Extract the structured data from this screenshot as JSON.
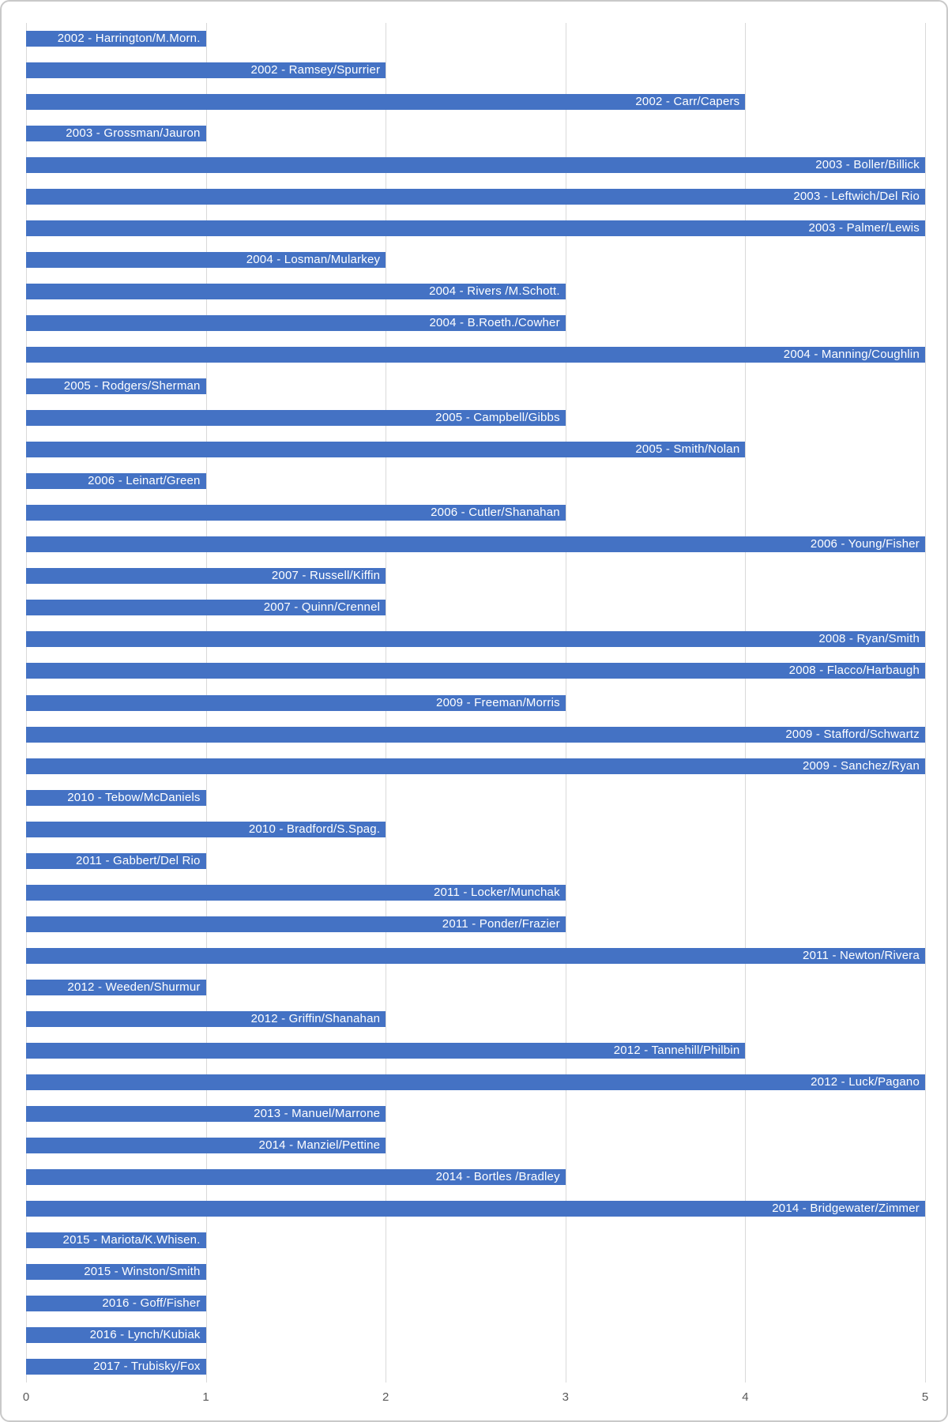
{
  "chart_data": {
    "type": "bar",
    "orientation": "horizontal",
    "title": "",
    "xlabel": "",
    "ylabel": "",
    "xlim": [
      0,
      5
    ],
    "x_ticks": [
      "0",
      "1",
      "2",
      "3",
      "4",
      "5"
    ],
    "grid": "vertical-only",
    "legend": "none",
    "label_position": "inside-end",
    "categories": [
      "2002 - Harrington/M.Morn.",
      "2002 - Ramsey/Spurrier",
      "2002 - Carr/Capers",
      "2003 - Grossman/Jauron",
      "2003 - Boller/Billick",
      "2003 - Leftwich/Del Rio",
      "2003 - Palmer/Lewis",
      "2004 - Losman/Mularkey",
      "2004 - Rivers /M.Schott.",
      "2004 - B.Roeth./Cowher",
      "2004 - Manning/Coughlin",
      "2005 - Rodgers/Sherman",
      "2005 - Campbell/Gibbs",
      "2005 - Smith/Nolan",
      "2006 - Leinart/Green",
      "2006 - Cutler/Shanahan",
      "2006 - Young/Fisher",
      "2007 - Russell/Kiffin",
      "2007 - Quinn/Crennel",
      "2008 - Ryan/Smith",
      "2008 - Flacco/Harbaugh",
      "2009 - Freeman/Morris",
      "2009 - Stafford/Schwartz",
      "2009 - Sanchez/Ryan",
      "2010 - Tebow/McDaniels",
      "2010 - Bradford/S.Spag.",
      "2011 - Gabbert/Del Rio",
      "2011 - Locker/Munchak",
      "2011 - Ponder/Frazier",
      "2011 - Newton/Rivera",
      "2012 - Weeden/Shurmur",
      "2012 - Griffin/Shanahan",
      "2012 - Tannehill/Philbin",
      "2012 - Luck/Pagano",
      "2013 - Manuel/Marrone",
      "2014 - Manziel/Pettine",
      "2014 - Bortles /Bradley",
      "2014 - Bridgewater/Zimmer",
      "2015 - Mariota/K.Whisen.",
      "2015 - Winston/Smith",
      "2016 - Goff/Fisher",
      "2016 - Lynch/Kubiak",
      "2017 - Trubisky/Fox"
    ],
    "values": [
      1,
      2,
      4,
      1,
      5,
      5,
      5,
      2,
      3,
      3,
      5,
      1,
      3,
      4,
      1,
      3,
      5,
      2,
      2,
      5,
      5,
      3,
      5,
      5,
      1,
      2,
      1,
      3,
      3,
      5,
      1,
      2,
      4,
      5,
      2,
      2,
      3,
      5,
      1,
      1,
      1,
      1,
      1
    ],
    "colors": {
      "bar": "#4472C4",
      "bar_label_text": "#FFFFFF",
      "gridline": "#D9D9D9",
      "axis_text": "#595959",
      "chart_border": "#C9C9C9",
      "background": "#FFFFFF"
    }
  }
}
